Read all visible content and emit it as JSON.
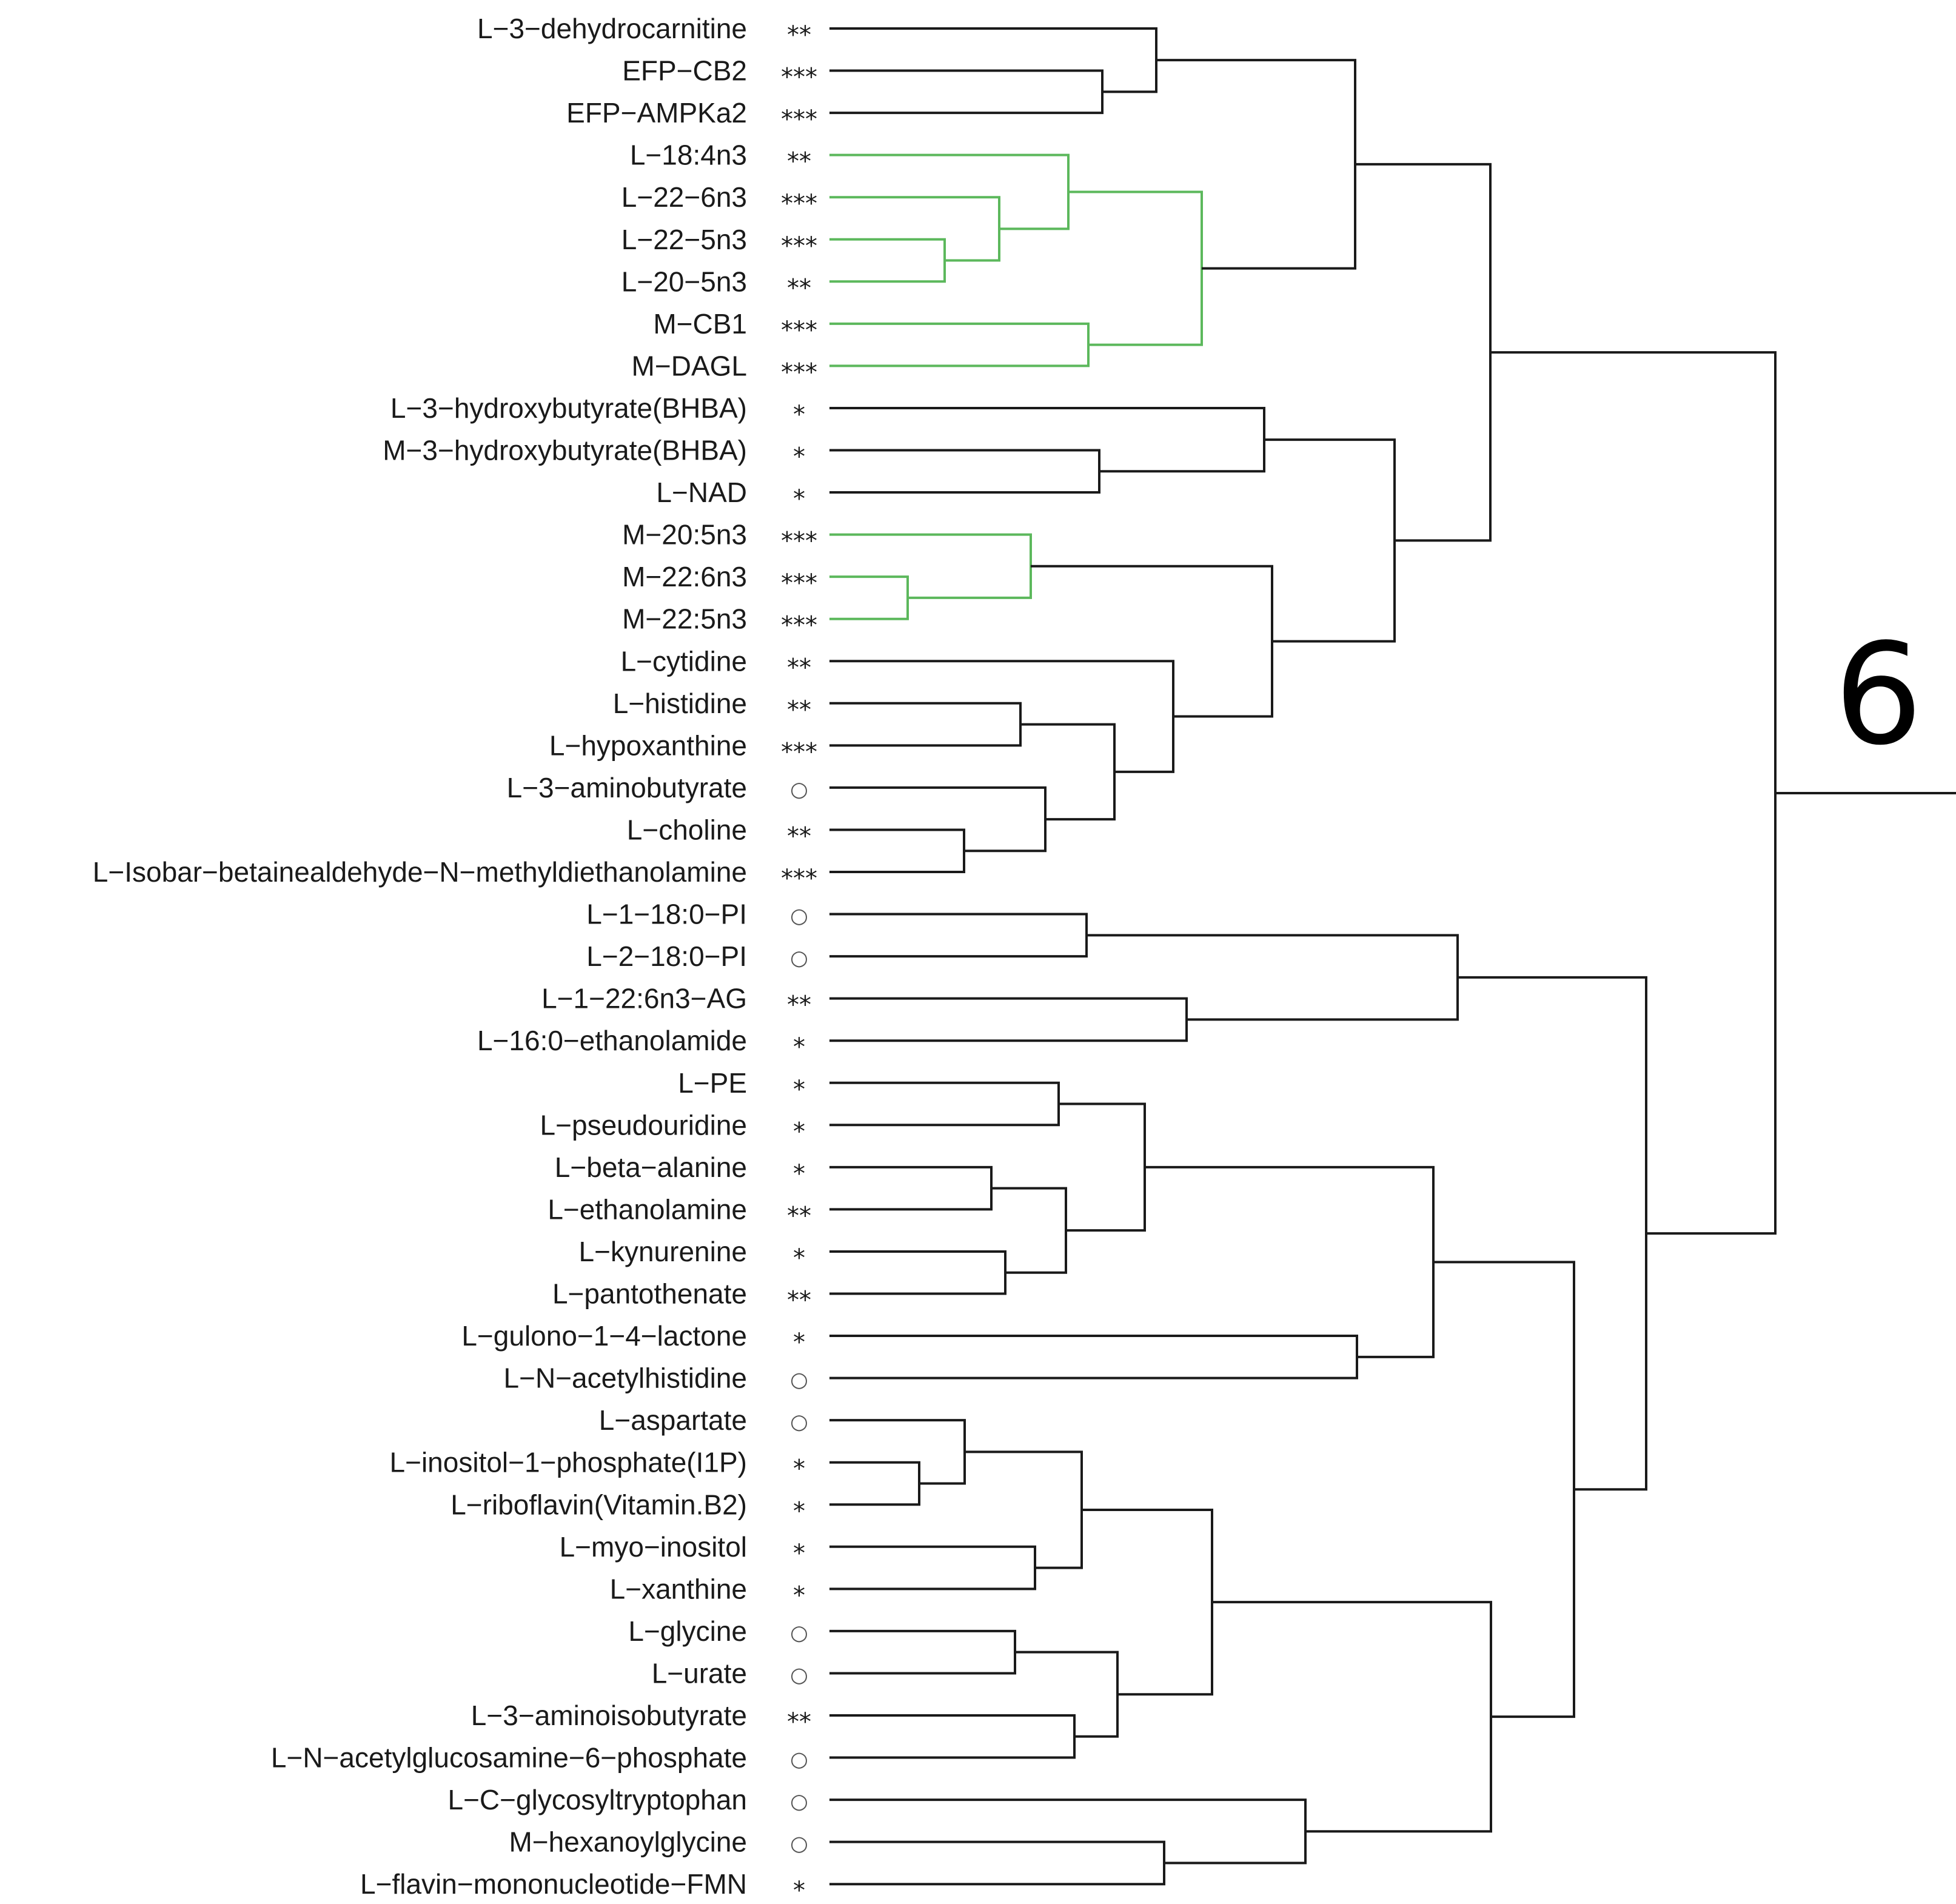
{
  "figure": {
    "cluster_label": "6",
    "colors": {
      "default_branch": "#1a1a1a",
      "highlight_branch": "#5cb85c",
      "text": "#1a1a1a"
    }
  },
  "leaves": [
    {
      "label": "L−3−dehydrocarnitine",
      "sig": "**"
    },
    {
      "label": "EFP−CB2",
      "sig": "***"
    },
    {
      "label": "EFP−AMPKa2",
      "sig": "***"
    },
    {
      "label": "L−18:4n3",
      "sig": "**"
    },
    {
      "label": "L−22−6n3",
      "sig": "***"
    },
    {
      "label": "L−22−5n3",
      "sig": "***"
    },
    {
      "label": "L−20−5n3",
      "sig": "**"
    },
    {
      "label": "M−CB1",
      "sig": "***"
    },
    {
      "label": "M−DAGL",
      "sig": "***"
    },
    {
      "label": "L−3−hydroxybutyrate(BHBA)",
      "sig": "*"
    },
    {
      "label": "M−3−hydroxybutyrate(BHBA)",
      "sig": "*"
    },
    {
      "label": "L−NAD",
      "sig": "*"
    },
    {
      "label": "M−20:5n3",
      "sig": "***"
    },
    {
      "label": "M−22:6n3",
      "sig": "***"
    },
    {
      "label": "M−22:5n3",
      "sig": "***"
    },
    {
      "label": "L−cytidine",
      "sig": "**"
    },
    {
      "label": "L−histidine",
      "sig": "**"
    },
    {
      "label": "L−hypoxanthine",
      "sig": "***"
    },
    {
      "label": "L−3−aminobutyrate",
      "sig": "○"
    },
    {
      "label": "L−choline",
      "sig": "**"
    },
    {
      "label": "L−Isobar−betainealdehyde−N−methyldiethanolamine",
      "sig": "***"
    },
    {
      "label": "L−1−18:0−PI",
      "sig": "○"
    },
    {
      "label": "L−2−18:0−PI",
      "sig": "○"
    },
    {
      "label": "L−1−22:6n3−AG",
      "sig": "**"
    },
    {
      "label": "L−16:0−ethanolamide",
      "sig": "*"
    },
    {
      "label": "L−PE",
      "sig": "*"
    },
    {
      "label": "L−pseudouridine",
      "sig": "*"
    },
    {
      "label": "L−beta−alanine",
      "sig": "*"
    },
    {
      "label": "L−ethanolamine",
      "sig": "**"
    },
    {
      "label": "L−kynurenine",
      "sig": "*"
    },
    {
      "label": "L−pantothenate",
      "sig": "**"
    },
    {
      "label": "L−gulono−1−4−lactone",
      "sig": "*"
    },
    {
      "label": "L−N−acetylhistidine",
      "sig": "○"
    },
    {
      "label": "L−aspartate",
      "sig": "○"
    },
    {
      "label": "L−inositol−1−phosphate(I1P)",
      "sig": "*"
    },
    {
      "label": "L−riboflavin(Vitamin.B2)",
      "sig": "*"
    },
    {
      "label": "L−myo−inositol",
      "sig": "*"
    },
    {
      "label": "L−xanthine",
      "sig": "*"
    },
    {
      "label": "L−glycine",
      "sig": "○"
    },
    {
      "label": "L−urate",
      "sig": "○"
    },
    {
      "label": "L−3−aminoisobutyrate",
      "sig": "**"
    },
    {
      "label": "L−N−acetylglucosamine−6−phosphate",
      "sig": "○"
    },
    {
      "label": "L−C−glycosyltryptophan",
      "sig": "○"
    },
    {
      "label": "M−hexanoylglycine",
      "sig": "○"
    },
    {
      "label": "L−flavin−mononucleotide−FMN",
      "sig": "*"
    }
  ]
}
